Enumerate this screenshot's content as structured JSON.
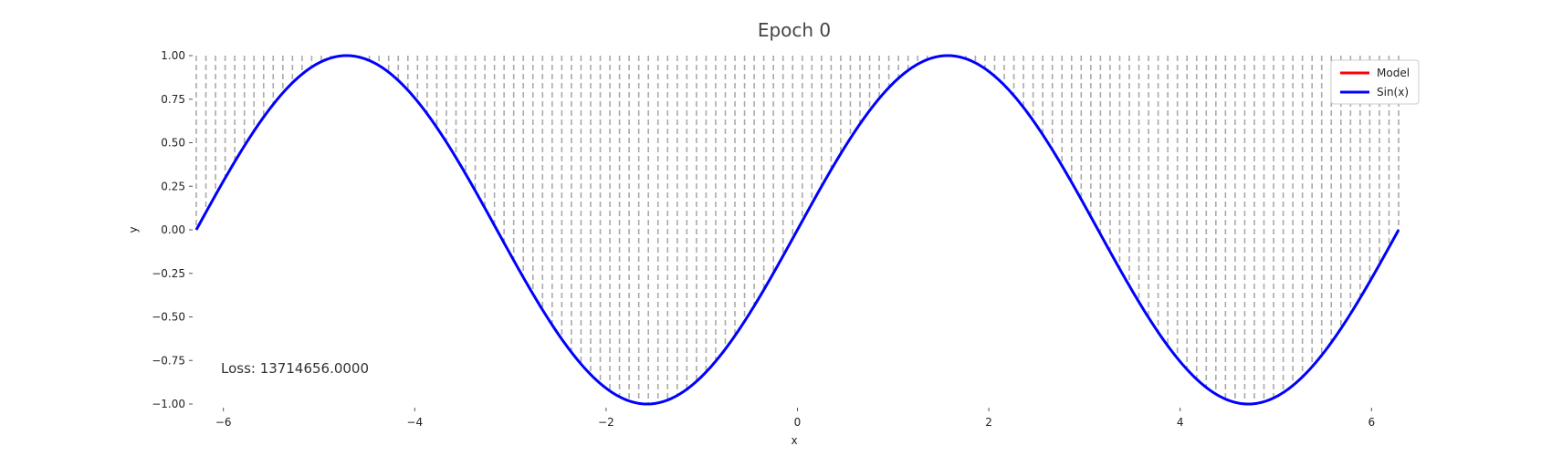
{
  "chart_data": {
    "type": "line",
    "title": "Epoch 0",
    "xlabel": "x",
    "ylabel": "y",
    "xlim": [
      -6.2832,
      6.2832
    ],
    "ylim": [
      -1.0,
      1.0
    ],
    "x_ticks": [
      -6,
      -4,
      -2,
      0,
      2,
      4,
      6
    ],
    "x_tick_labels": [
      "−6",
      "−4",
      "−2",
      "0",
      "2",
      "4",
      "6"
    ],
    "y_ticks": [
      1.0,
      0.75,
      0.5,
      0.25,
      0.0,
      -0.25,
      -0.5,
      -0.75,
      -1.0
    ],
    "y_tick_labels": [
      "1.00",
      "0.75",
      "0.50",
      "0.25",
      "0.00",
      "−0.25",
      "−0.50",
      "−0.75",
      "−1.00"
    ],
    "grid": false,
    "legend_position": "top-right",
    "series": [
      {
        "name": "Model",
        "color": "#ff0000",
        "function": "none"
      },
      {
        "name": "Sin(x)",
        "color": "#0000ff",
        "function": "sin"
      }
    ],
    "vertical_markers": {
      "style": "dashed",
      "color": "#aaaaaa",
      "count": 126,
      "range": [
        -6.2832,
        6.2832
      ]
    },
    "annotation": "Loss: 13714656.0000"
  }
}
